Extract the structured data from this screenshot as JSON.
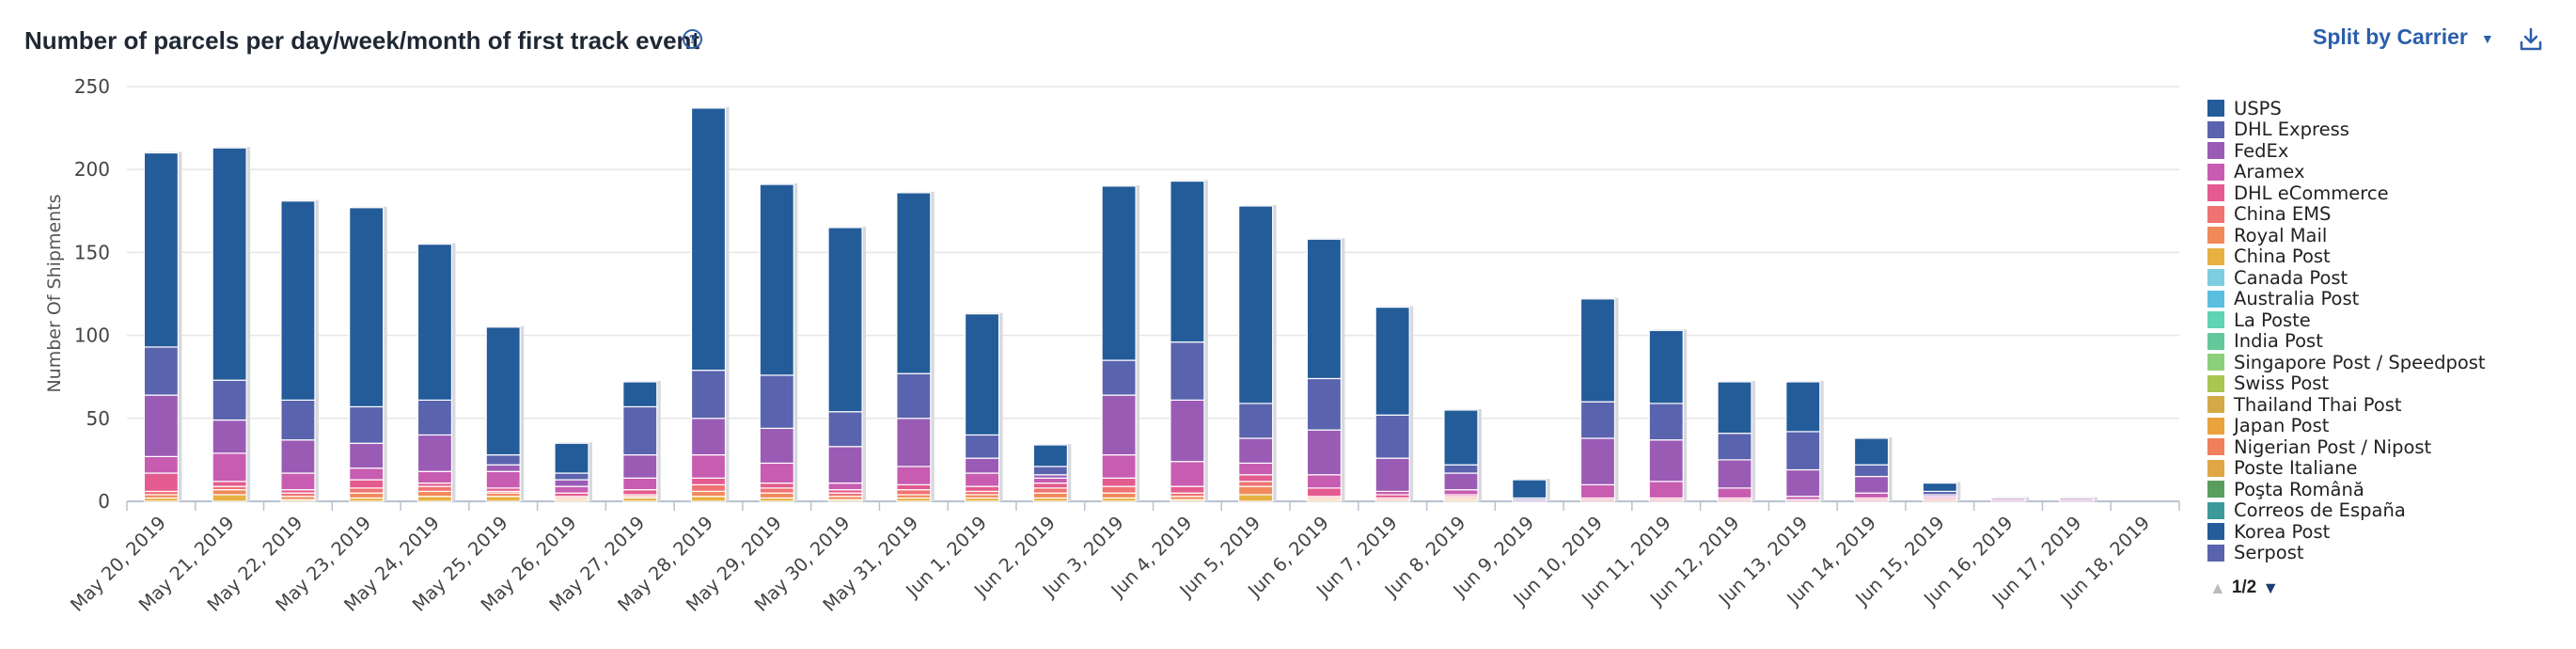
{
  "header": {
    "title": "Number of parcels per day/week/month of first track event",
    "help_icon": "?",
    "split_label": "Split by Carrier"
  },
  "pager": {
    "label": "1/2"
  },
  "legend": [
    {
      "name": "USPS",
      "color": "#245c9a"
    },
    {
      "name": "DHL Express",
      "color": "#5a63ad"
    },
    {
      "name": "FedEx",
      "color": "#9a5bb5"
    },
    {
      "name": "Aramex",
      "color": "#c75cb1"
    },
    {
      "name": "DHL eCommerce",
      "color": "#e35b8f"
    },
    {
      "name": "China EMS",
      "color": "#f07272"
    },
    {
      "name": "Royal Mail",
      "color": "#f08a5a"
    },
    {
      "name": "China Post",
      "color": "#e6b043"
    },
    {
      "name": "Canada Post",
      "color": "#7ecde0"
    },
    {
      "name": "Australia Post",
      "color": "#5bbfe0"
    },
    {
      "name": "La Poste",
      "color": "#5fd3b3"
    },
    {
      "name": "India Post",
      "color": "#64c89b"
    },
    {
      "name": "Singapore Post / Speedpost",
      "color": "#8bcf7a"
    },
    {
      "name": "Swiss Post",
      "color": "#a8c651"
    },
    {
      "name": "Thailand Thai Post",
      "color": "#d4a947"
    },
    {
      "name": "Japan Post",
      "color": "#e8a33c"
    },
    {
      "name": "Nigerian Post / Nipost",
      "color": "#f07f5c"
    },
    {
      "name": "Poste Italiane",
      "color": "#e0a545"
    },
    {
      "name": "Poşta Română",
      "color": "#5a9e5f"
    },
    {
      "name": "Correos de España",
      "color": "#3d9a9a"
    },
    {
      "name": "Korea Post",
      "color": "#245c9a"
    },
    {
      "name": "Serpost",
      "color": "#5a63ad"
    }
  ],
  "chart_data": {
    "type": "bar",
    "stacked": true,
    "title": "Number of parcels per day/week/month of first track event",
    "xlabel": "",
    "ylabel": "Number Of Shipments",
    "ylim": [
      0,
      250
    ],
    "yticks": [
      0,
      50,
      100,
      150,
      200,
      250
    ],
    "grid": true,
    "legend_position": "right",
    "categories": [
      "May 20, 2019",
      "May 21, 2019",
      "May 22, 2019",
      "May 23, 2019",
      "May 24, 2019",
      "May 25, 2019",
      "May 26, 2019",
      "May 27, 2019",
      "May 28, 2019",
      "May 29, 2019",
      "May 30, 2019",
      "May 31, 2019",
      "Jun 1, 2019",
      "Jun 2, 2019",
      "Jun 3, 2019",
      "Jun 4, 2019",
      "Jun 5, 2019",
      "Jun 6, 2019",
      "Jun 7, 2019",
      "Jun 8, 2019",
      "Jun 9, 2019",
      "Jun 10, 2019",
      "Jun 11, 2019",
      "Jun 12, 2019",
      "Jun 13, 2019",
      "Jun 14, 2019",
      "Jun 15, 2019",
      "Jun 16, 2019",
      "Jun 17, 2019",
      "Jun 18, 2019"
    ],
    "series": [
      {
        "name": "China Post",
        "color": "#e6b043",
        "values": [
          2,
          4,
          1,
          2,
          3,
          3,
          1,
          2,
          3,
          2,
          1,
          2,
          2,
          2,
          2,
          1,
          4,
          1,
          0,
          1,
          0,
          0,
          0,
          0,
          0,
          0,
          0,
          0,
          0,
          0
        ]
      },
      {
        "name": "Royal Mail",
        "color": "#f08a5a",
        "values": [
          2,
          3,
          2,
          3,
          3,
          2,
          1,
          1,
          3,
          3,
          2,
          2,
          2,
          3,
          3,
          2,
          5,
          1,
          1,
          1,
          0,
          0,
          0,
          0,
          0,
          0,
          1,
          0,
          0,
          0
        ]
      },
      {
        "name": "China EMS",
        "color": "#f07272",
        "values": [
          2,
          2,
          2,
          3,
          3,
          1,
          1,
          1,
          4,
          3,
          2,
          3,
          2,
          3,
          4,
          2,
          3,
          1,
          1,
          1,
          0,
          1,
          1,
          1,
          0,
          1,
          0,
          0,
          0,
          0
        ]
      },
      {
        "name": "DHL eCommerce",
        "color": "#e35b8f",
        "values": [
          11,
          3,
          2,
          5,
          2,
          2,
          2,
          3,
          4,
          3,
          2,
          3,
          3,
          3,
          5,
          4,
          4,
          5,
          2,
          1,
          0,
          1,
          1,
          1,
          1,
          1,
          1,
          0,
          0,
          0
        ]
      },
      {
        "name": "Aramex",
        "color": "#c75cb1",
        "values": [
          10,
          17,
          10,
          7,
          7,
          10,
          4,
          7,
          14,
          12,
          4,
          11,
          8,
          3,
          14,
          15,
          7,
          8,
          2,
          3,
          0,
          8,
          10,
          6,
          2,
          3,
          1,
          1,
          1,
          0
        ]
      },
      {
        "name": "FedEx",
        "color": "#9a5bb5",
        "values": [
          37,
          20,
          20,
          15,
          22,
          4,
          4,
          14,
          22,
          21,
          22,
          29,
          9,
          2,
          36,
          37,
          15,
          27,
          20,
          10,
          1,
          28,
          25,
          17,
          16,
          10,
          1,
          1,
          1,
          0
        ]
      },
      {
        "name": "DHL Express",
        "color": "#5a63ad",
        "values": [
          29,
          24,
          24,
          22,
          21,
          6,
          4,
          29,
          29,
          32,
          21,
          27,
          14,
          5,
          21,
          35,
          21,
          31,
          26,
          5,
          1,
          22,
          22,
          16,
          23,
          7,
          2,
          0,
          0,
          0
        ]
      },
      {
        "name": "USPS",
        "color": "#245c9a",
        "values": [
          117,
          140,
          120,
          120,
          94,
          77,
          18,
          15,
          158,
          115,
          111,
          109,
          73,
          13,
          105,
          97,
          119,
          84,
          65,
          33,
          11,
          62,
          44,
          31,
          30,
          16,
          5,
          0,
          0,
          0
        ]
      }
    ]
  }
}
